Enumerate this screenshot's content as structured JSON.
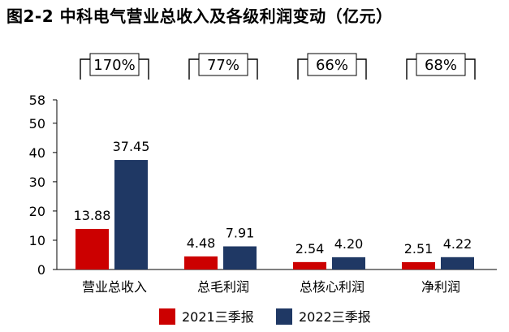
{
  "chart_data": {
    "type": "bar",
    "title": "图2-2 中科电气营业总收入及各级利润变动（亿元）",
    "categories": [
      "营业总收入",
      "总毛利润",
      "总核心利润",
      "净利润"
    ],
    "series": [
      {
        "name": "2021三季报",
        "values": [
          13.88,
          4.48,
          2.54,
          2.51
        ],
        "labels": [
          "13.88",
          "4.48",
          "2.54",
          "2.51"
        ],
        "color": "#cc0000"
      },
      {
        "name": "2022三季报",
        "values": [
          37.45,
          7.91,
          4.2,
          4.22
        ],
        "labels": [
          "37.45",
          "7.91",
          "4.20",
          "4.22"
        ],
        "color": "#1f3864"
      }
    ],
    "growth": [
      "170%",
      "77%",
      "66%",
      "68%"
    ],
    "yticks": [
      0,
      10,
      20,
      30,
      40,
      50,
      58
    ],
    "ylim": [
      0,
      58
    ],
    "grid": false,
    "legend": "bottom"
  }
}
